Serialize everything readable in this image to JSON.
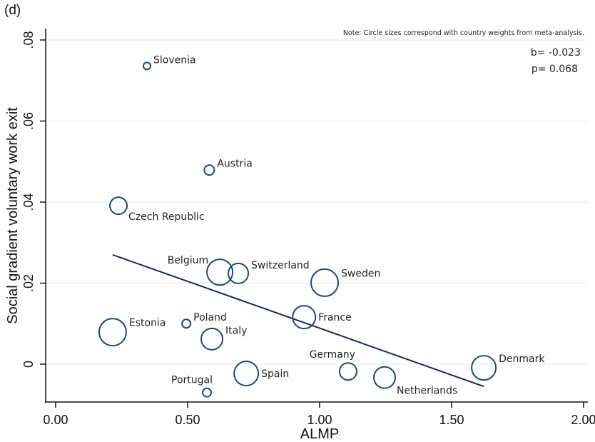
{
  "chart_data": {
    "type": "scatter",
    "panel_label": "(d)",
    "title": "",
    "xlabel": "ALMP",
    "ylabel": "Social gradient voluntary work exit",
    "xlim": [
      -0.02,
      2.03
    ],
    "ylim": [
      -0.0095,
      0.0825
    ],
    "xticks": [
      0,
      0.5,
      1.0,
      1.5,
      2.0
    ],
    "xtick_labels": [
      "0.00",
      "0.50",
      "1.00",
      "1.50",
      "2.00"
    ],
    "yticks": [
      0,
      0.02,
      0.04,
      0.06,
      0.08
    ],
    "ytick_labels": [
      "0",
      ".02",
      ".04",
      ".06",
      ".08"
    ],
    "grid": true,
    "note": "Note: Circle sizes correspond with country weights from meta-analysis.",
    "stats": [
      "b= -0.023",
      "p= 0.068"
    ],
    "points": [
      {
        "label": "Slovenia",
        "x": 0.346,
        "y": 0.0736,
        "weight": 5,
        "label_pos": "right-up"
      },
      {
        "label": "Austria",
        "x": 0.582,
        "y": 0.0479,
        "weight": 7,
        "label_pos": "right-up"
      },
      {
        "label": "Czech Republic",
        "x": 0.238,
        "y": 0.0391,
        "weight": 12,
        "label_pos": "right-down"
      },
      {
        "label": "Belgium",
        "x": 0.622,
        "y": 0.0227,
        "weight": 18,
        "label_pos": "left-up"
      },
      {
        "label": "Switzerland",
        "x": 0.692,
        "y": 0.0224,
        "weight": 14,
        "label_pos": "right-up"
      },
      {
        "label": "Sweden",
        "x": 1.019,
        "y": 0.0201,
        "weight": 19,
        "label_pos": "right-up"
      },
      {
        "label": "Estonia",
        "x": 0.216,
        "y": 0.0079,
        "weight": 19,
        "label_pos": "right-up"
      },
      {
        "label": "Poland",
        "x": 0.495,
        "y": 0.01,
        "weight": 6,
        "label_pos": "right-up"
      },
      {
        "label": "Italy",
        "x": 0.592,
        "y": 0.0062,
        "weight": 15,
        "label_pos": "right-up"
      },
      {
        "label": "France",
        "x": 0.941,
        "y": 0.0116,
        "weight": 16,
        "label_pos": "right"
      },
      {
        "label": "Germany",
        "x": 1.108,
        "y": -0.0018,
        "weight": 12,
        "label_pos": "left-up"
      },
      {
        "label": "Netherlands",
        "x": 1.246,
        "y": -0.0033,
        "weight": 15,
        "label_pos": "right-down"
      },
      {
        "label": "Spain",
        "x": 0.722,
        "y": -0.0023,
        "weight": 17,
        "label_pos": "right"
      },
      {
        "label": "Portugal",
        "x": 0.573,
        "y": -0.007,
        "weight": 6,
        "label_pos": "left-up"
      },
      {
        "label": "Denmark",
        "x": 1.622,
        "y": -0.0009,
        "weight": 17,
        "label_pos": "right-up"
      }
    ],
    "fit_line": {
      "x": [
        0.216,
        1.622
      ],
      "y": [
        0.027,
        -0.0055
      ]
    }
  }
}
